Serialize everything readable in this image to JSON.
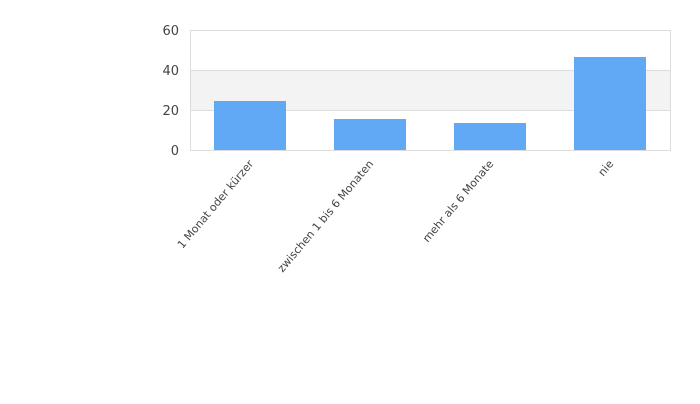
{
  "chart_data": {
    "type": "bar",
    "categories": [
      "1 Monat oder kürzer",
      "zwischen 1 bis 6 Monaten",
      "mehr als 6 Monate",
      "nie"
    ],
    "values": [
      24.5,
      15.5,
      13.5,
      46.5
    ],
    "title": "",
    "xlabel": "",
    "ylabel": "",
    "ylim": [
      0,
      60
    ],
    "yticks": [
      "0",
      "20",
      "40",
      "60"
    ],
    "grid": true,
    "legend": "none",
    "colors": {
      "bar": "#61a9f4",
      "band": "#f3f3f3",
      "grid": "#dddddd",
      "text": "#444444"
    }
  }
}
